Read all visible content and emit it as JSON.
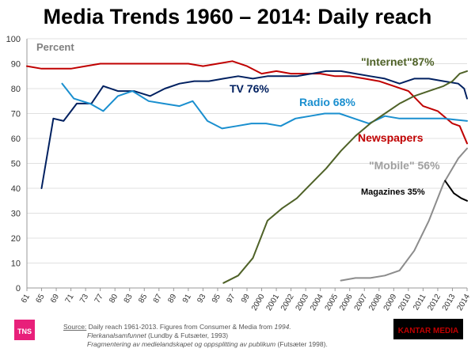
{
  "chart_data": {
    "type": "line",
    "title": "Media Trends 1960 – 2014: Daily reach",
    "ylabel": "Percent",
    "ylim": [
      0,
      100
    ],
    "yticks": [
      0,
      10,
      20,
      30,
      40,
      50,
      60,
      70,
      80,
      90,
      100
    ],
    "xtick_labels": [
      "61",
      "65",
      "69",
      "71",
      "73",
      "77",
      "80",
      "83",
      "85",
      "87",
      "89",
      "91",
      "93",
      "95",
      "97",
      "99",
      "2000",
      "2001",
      "2002",
      "2003",
      "2004",
      "2005",
      "2006",
      "2007",
      "2008",
      "2009",
      "2010",
      "2011",
      "2012",
      "2013",
      "2014"
    ],
    "grid": "horizontal",
    "series": [
      {
        "name": "Newspapers",
        "color": "#c00000",
        "label_color": "#c00000",
        "values": [
          89,
          88,
          88,
          88,
          89,
          90,
          90,
          90,
          90,
          90,
          90,
          90,
          89,
          90,
          91,
          89,
          86,
          87,
          86,
          86,
          86,
          85,
          85,
          84,
          83,
          81,
          79,
          73,
          71,
          66,
          65,
          58
        ],
        "x_index": [
          0,
          1,
          2,
          3,
          4,
          5,
          6,
          7,
          8,
          9,
          10,
          11,
          12,
          13,
          14,
          15,
          16,
          17,
          18,
          19,
          20,
          21,
          22,
          23,
          24,
          25,
          26,
          27,
          28,
          29,
          29.5,
          30
        ]
      },
      {
        "name": "TV 76%",
        "color": "#002060",
        "label_color": "#002060",
        "values": [
          40,
          68,
          67,
          74,
          74,
          81,
          79,
          79,
          77,
          80,
          82,
          83,
          83,
          84,
          85,
          84,
          85,
          85,
          85,
          86,
          87,
          87,
          86,
          85,
          84,
          82,
          84,
          84,
          83,
          82,
          80,
          76
        ],
        "x_index": [
          1,
          1.8,
          2.5,
          3.4,
          4.4,
          5.2,
          6.2,
          7.3,
          8.4,
          9.4,
          10.4,
          11.4,
          12.4,
          13.4,
          14.4,
          15.4,
          16.4,
          17.4,
          18.4,
          19.4,
          20.4,
          21.4,
          22.4,
          23.4,
          24.4,
          25.4,
          26.4,
          27.4,
          28.4,
          29.4,
          29.8,
          30
        ]
      },
      {
        "name": "Radio 68%",
        "color": "#1a8fcf",
        "label_color": "#1a8fcf",
        "values": [
          82,
          76,
          74,
          71,
          77,
          79,
          75,
          74,
          73,
          75,
          67,
          64,
          65,
          66,
          66,
          65,
          68,
          69,
          70,
          70,
          68,
          66,
          69,
          68,
          68,
          68,
          68,
          67
        ],
        "x_index": [
          2.4,
          3.2,
          4.3,
          5.2,
          6.2,
          7.2,
          8.3,
          9.3,
          10.4,
          11.3,
          12.3,
          13.3,
          14.3,
          15.3,
          16.3,
          17.3,
          18.3,
          19.3,
          20.3,
          21.3,
          22.3,
          23.3,
          24.4,
          25.4,
          26.4,
          27.4,
          28.4,
          30
        ]
      },
      {
        "name": "\"Internet\"87%",
        "color": "#4f6228",
        "label_color": "#4f6228",
        "values": [
          2,
          5,
          12,
          27,
          32,
          36,
          42,
          48,
          55,
          61,
          66,
          70,
          74,
          77,
          79,
          81,
          83,
          86,
          87
        ],
        "x_index": [
          13.4,
          14.4,
          15.4,
          16.4,
          17.4,
          18.4,
          19.4,
          20.4,
          21.4,
          22.4,
          23.4,
          24.4,
          25.4,
          26.4,
          27.4,
          28.4,
          29,
          29.5,
          30
        ]
      },
      {
        "name": "\"Mobile\" 56%",
        "color": "#8c8c8c",
        "label_color": "#a0a0a0",
        "values": [
          3,
          4,
          4,
          5,
          7,
          15,
          27,
          42,
          52,
          56
        ],
        "x_index": [
          21.4,
          22.4,
          23.4,
          24.4,
          25.4,
          26.4,
          27.4,
          28.4,
          29.4,
          30
        ]
      },
      {
        "name": "Magazines 35%",
        "color": "#000000",
        "label_color": "#000000",
        "values": [
          43,
          38,
          36,
          35
        ],
        "x_index": [
          28.5,
          29.1,
          29.6,
          30
        ]
      }
    ],
    "source_label": "Source:",
    "source_line1": " Daily reach 1961-2013.  Figures from Consumer & Media from ",
    "source_line1_italic": "1994.",
    "source_line2_italic": "Flerkanalsamfunnet",
    "source_line2": " (Lundby  & Futsæter, 1993)",
    "source_line3_italic": "Fragmentering  av medielandskapet og oppsplitting av publikum",
    "source_line3": " (Futsæter 1998)."
  },
  "logos": {
    "tns": "TNS",
    "kantar": "KANTAR MEDIA",
    "tns_color": "#e8207a",
    "kantar_color": "#c00000"
  }
}
